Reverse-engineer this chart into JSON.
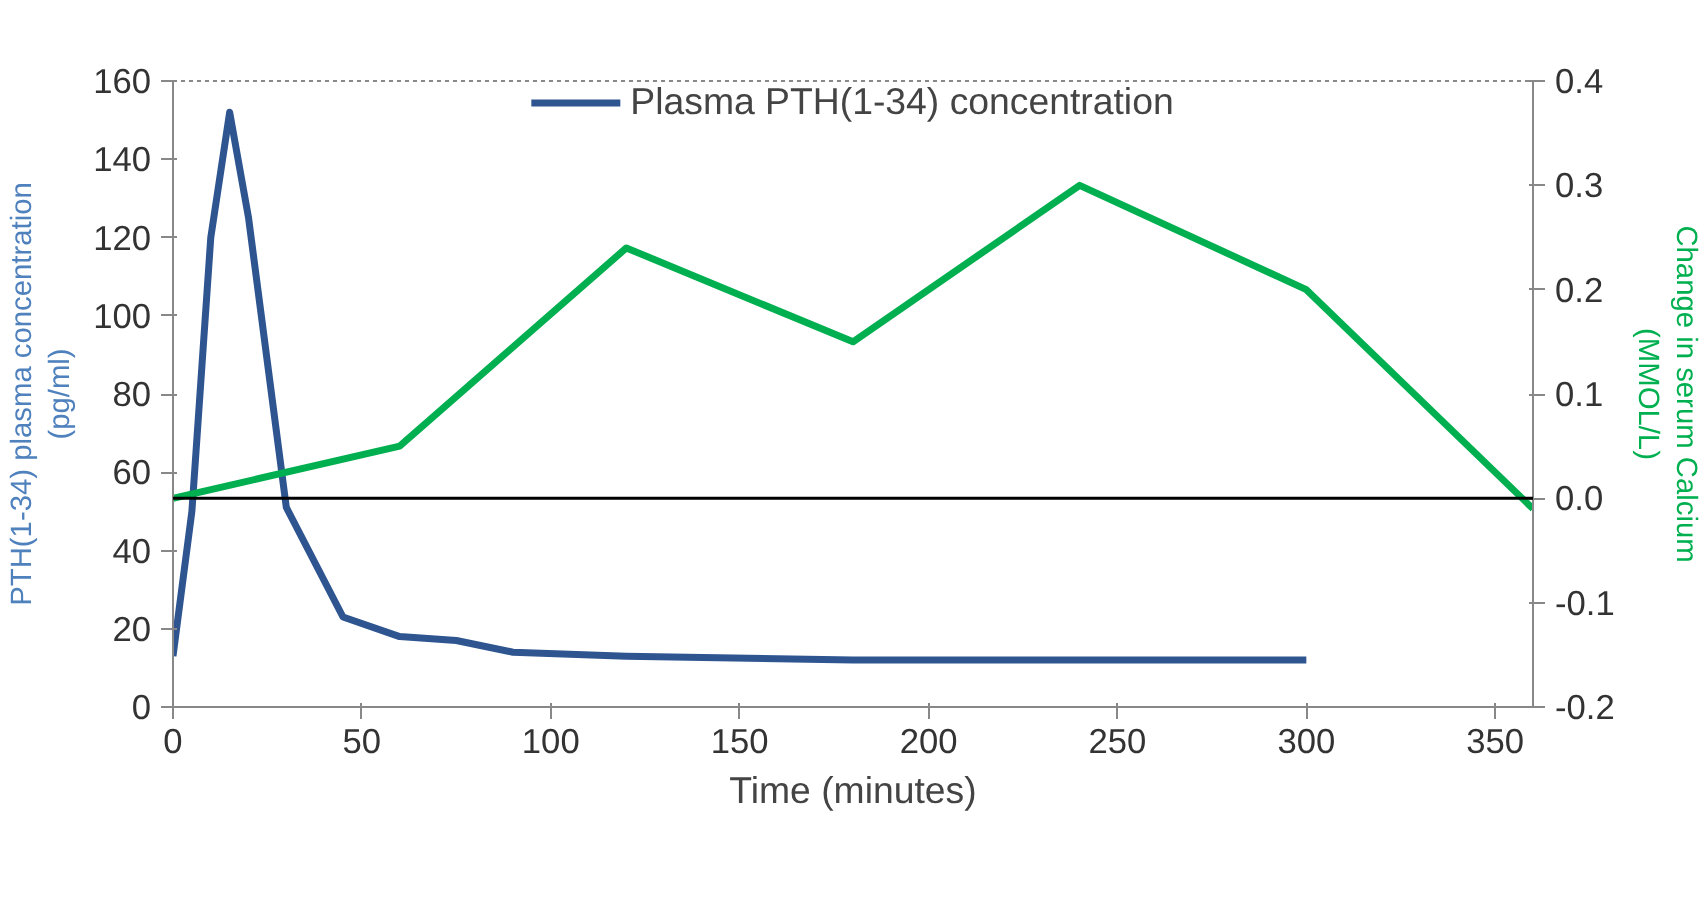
{
  "chart_data": {
    "type": "line",
    "xlabel": "Time (minutes)",
    "ylabel": "PTH(1-34) plasma concentration\n(pg/ml)",
    "y2label": "Change in serum Calcium\n(MMOL/L)",
    "xlim": [
      0,
      360
    ],
    "xticks": [
      0,
      50,
      100,
      150,
      200,
      250,
      300,
      350
    ],
    "ylim": [
      0,
      160
    ],
    "yticks": [
      0,
      20,
      40,
      60,
      80,
      100,
      120,
      140,
      160
    ],
    "y2lim": [
      -0.2,
      0.4
    ],
    "y2ticks": [
      {
        "value": -0.2,
        "label": "-0.2"
      },
      {
        "value": -0.1,
        "label": "-0.1"
      },
      {
        "value": 0,
        "label": "0.0"
      },
      {
        "value": 0.1,
        "label": "0.1"
      },
      {
        "value": 0.2,
        "label": "0.2"
      },
      {
        "value": 0.3,
        "label": "0.3"
      },
      {
        "value": 0.4,
        "label": "0.4"
      }
    ],
    "series": [
      {
        "name": "Plasma PTH(1-34) concentration",
        "color": "#2e5590",
        "x": [
          0,
          5,
          10,
          15,
          20,
          30,
          45,
          60,
          75,
          90,
          120,
          180,
          240,
          300
        ],
        "values": [
          13,
          50,
          120,
          152,
          125,
          51,
          23,
          18,
          17,
          14,
          13,
          12,
          12,
          12
        ]
      },
      {
        "color": "#00b050",
        "axis": "y2",
        "x": [
          0,
          60,
          120,
          180,
          240,
          300,
          360
        ],
        "values": [
          0,
          0.05,
          0.24,
          0.15,
          0.3,
          0.2,
          -0.01
        ]
      }
    ],
    "ref_lines": [
      {
        "axis": "y2",
        "value": 0,
        "color": "#000000"
      }
    ],
    "legend": "top",
    "grid": false
  }
}
